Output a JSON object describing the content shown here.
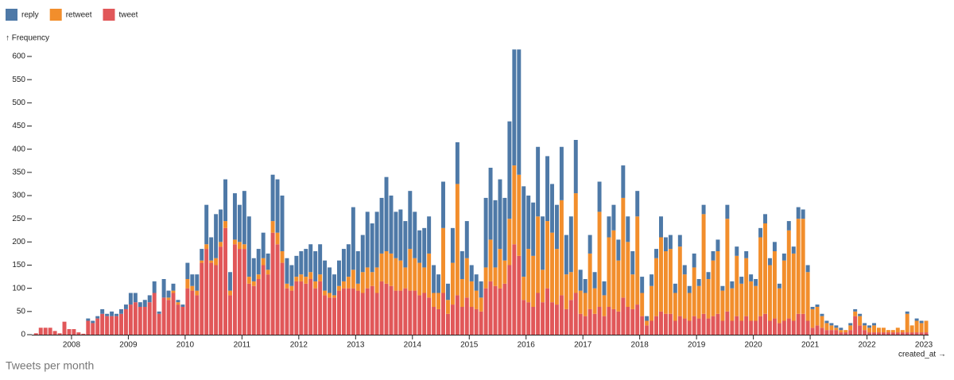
{
  "chart_data": {
    "type": "stacked-bar",
    "caption": "Tweets per month",
    "y_label": "↑ Frequency",
    "x_label": "created_at →",
    "x": [
      "2007-05",
      "2007-06",
      "2007-07",
      "2007-08",
      "2007-09",
      "2007-10",
      "2007-11",
      "2007-12",
      "2008-01",
      "2008-02",
      "2008-03",
      "2008-04",
      "2008-05",
      "2008-06",
      "2008-07",
      "2008-08",
      "2008-09",
      "2008-10",
      "2008-11",
      "2008-12",
      "2009-01",
      "2009-02",
      "2009-03",
      "2009-04",
      "2009-05",
      "2009-06",
      "2009-07",
      "2009-08",
      "2009-09",
      "2009-10",
      "2009-11",
      "2009-12",
      "2010-01",
      "2010-02",
      "2010-03",
      "2010-04",
      "2010-05",
      "2010-06",
      "2010-07",
      "2010-08",
      "2010-09",
      "2010-10",
      "2010-11",
      "2010-12",
      "2011-01",
      "2011-02",
      "2011-03",
      "2011-04",
      "2011-05",
      "2011-06",
      "2011-07",
      "2011-08",
      "2011-09",
      "2011-10",
      "2011-11",
      "2011-12",
      "2012-01",
      "2012-02",
      "2012-03",
      "2012-04",
      "2012-05",
      "2012-06",
      "2012-07",
      "2012-08",
      "2012-09",
      "2012-10",
      "2012-11",
      "2012-12",
      "2013-01",
      "2013-02",
      "2013-03",
      "2013-04",
      "2013-05",
      "2013-06",
      "2013-07",
      "2013-08",
      "2013-09",
      "2013-10",
      "2013-11",
      "2013-12",
      "2014-01",
      "2014-02",
      "2014-03",
      "2014-04",
      "2014-05",
      "2014-06",
      "2014-07",
      "2014-08",
      "2014-09",
      "2014-10",
      "2014-11",
      "2014-12",
      "2015-01",
      "2015-02",
      "2015-03",
      "2015-04",
      "2015-05",
      "2015-06",
      "2015-07",
      "2015-08",
      "2015-09",
      "2015-10",
      "2015-11",
      "2015-12",
      "2016-01",
      "2016-02",
      "2016-03",
      "2016-04",
      "2016-05",
      "2016-06",
      "2016-07",
      "2016-08",
      "2016-09",
      "2016-10",
      "2016-11",
      "2016-12",
      "2017-01",
      "2017-02",
      "2017-03",
      "2017-04",
      "2017-05",
      "2017-06",
      "2017-07",
      "2017-08",
      "2017-09",
      "2017-10",
      "2017-11",
      "2017-12",
      "2018-01",
      "2018-02",
      "2018-03",
      "2018-04",
      "2018-05",
      "2018-06",
      "2018-07",
      "2018-08",
      "2018-09",
      "2018-10",
      "2018-11",
      "2018-12",
      "2019-01",
      "2019-02",
      "2019-03",
      "2019-04",
      "2019-05",
      "2019-06",
      "2019-07",
      "2019-08",
      "2019-09",
      "2019-10",
      "2019-11",
      "2019-12",
      "2020-01",
      "2020-02",
      "2020-03",
      "2020-04",
      "2020-05",
      "2020-06",
      "2020-07",
      "2020-08",
      "2020-09",
      "2020-10",
      "2020-11",
      "2020-12",
      "2021-01",
      "2021-02",
      "2021-03",
      "2021-04",
      "2021-05",
      "2021-06",
      "2021-07",
      "2021-08",
      "2021-09",
      "2021-10",
      "2021-11",
      "2021-12",
      "2022-01",
      "2022-02",
      "2022-03",
      "2022-04",
      "2022-05",
      "2022-06",
      "2022-07",
      "2022-08",
      "2022-09",
      "2022-10",
      "2022-11",
      "2022-12",
      "2023-01"
    ],
    "series": [
      {
        "name": "reply",
        "color": "#4e79a7",
        "values": [
          0,
          0,
          0,
          0,
          0,
          0,
          0,
          0,
          0,
          0,
          0,
          5,
          5,
          5,
          10,
          5,
          10,
          5,
          10,
          10,
          25,
          20,
          10,
          15,
          15,
          25,
          5,
          40,
          15,
          15,
          5,
          5,
          35,
          25,
          35,
          25,
          85,
          50,
          95,
          70,
          90,
          40,
          100,
          80,
          115,
          130,
          50,
          55,
          55,
          35,
          100,
          115,
          120,
          55,
          45,
          45,
          50,
          60,
          60,
          65,
          65,
          65,
          55,
          45,
          55,
          70,
          70,
          135,
          70,
          80,
          120,
          105,
          120,
          120,
          160,
          125,
          100,
          110,
          100,
          125,
          100,
          70,
          85,
          80,
          60,
          40,
          100,
          35,
          75,
          90,
          60,
          80,
          35,
          35,
          35,
          150,
          155,
          145,
          150,
          135,
          210,
          250,
          270,
          195,
          115,
          115,
          150,
          115,
          140,
          105,
          95,
          115,
          85,
          120,
          115,
          45,
          30,
          40,
          35,
          65,
          30,
          45,
          55,
          45,
          70,
          55,
          50,
          55,
          35,
          10,
          25,
          20,
          45,
          30,
          30,
          20,
          25,
          20,
          15,
          30,
          15,
          20,
          15,
          20,
          25,
          10,
          30,
          15,
          20,
          15,
          15,
          15,
          15,
          20,
          20,
          15,
          20,
          10,
          15,
          20,
          15,
          25,
          20,
          15,
          5,
          5,
          5,
          5,
          5,
          5,
          5,
          0,
          5,
          5,
          5,
          5,
          5,
          5,
          0,
          0,
          0,
          0,
          0,
          0,
          5,
          0,
          5,
          5,
          0
        ]
      },
      {
        "name": "retweet",
        "color": "#f28e2c",
        "values": [
          0,
          0,
          0,
          0,
          0,
          0,
          0,
          0,
          0,
          0,
          0,
          0,
          0,
          0,
          0,
          0,
          0,
          0,
          0,
          0,
          0,
          0,
          0,
          0,
          0,
          0,
          0,
          0,
          5,
          5,
          5,
          0,
          20,
          10,
          10,
          5,
          10,
          5,
          15,
          10,
          15,
          10,
          10,
          15,
          10,
          15,
          10,
          10,
          15,
          10,
          25,
          25,
          25,
          10,
          10,
          10,
          15,
          15,
          15,
          15,
          15,
          10,
          10,
          5,
          10,
          15,
          25,
          40,
          15,
          45,
          45,
          30,
          55,
          60,
          70,
          70,
          70,
          65,
          45,
          90,
          70,
          70,
          55,
          95,
          30,
          35,
          140,
          30,
          90,
          240,
          60,
          85,
          55,
          40,
          30,
          45,
          90,
          40,
          85,
          50,
          100,
          170,
          175,
          50,
          115,
          110,
          165,
          70,
          145,
          150,
          120,
          205,
          75,
          60,
          215,
          50,
          50,
          120,
          55,
          205,
          45,
          150,
          170,
          110,
          215,
          140,
          75,
          190,
          50,
          10,
          75,
          125,
          160,
          135,
          140,
          60,
          150,
          95,
          60,
          105,
          70,
          215,
          85,
          120,
          135,
          65,
          200,
          70,
          130,
          80,
          125,
          85,
          75,
          170,
          195,
          120,
          145,
          75,
          130,
          190,
          145,
          205,
          205,
          105,
          40,
          40,
          25,
          15,
          10,
          5,
          5,
          5,
          10,
          10,
          20,
          10,
          10,
          15,
          10,
          10,
          5,
          5,
          10,
          5,
          40,
          15,
          25,
          20,
          25
        ]
      },
      {
        "name": "tweet",
        "color": "#e15759",
        "values": [
          3,
          15,
          15,
          15,
          8,
          3,
          28,
          12,
          12,
          5,
          2,
          30,
          25,
          35,
          45,
          40,
          40,
          40,
          45,
          55,
          65,
          70,
          60,
          60,
          70,
          90,
          45,
          80,
          75,
          90,
          65,
          60,
          100,
          95,
          85,
          155,
          185,
          155,
          150,
          190,
          230,
          85,
          195,
          185,
          185,
          110,
          105,
          120,
          150,
          130,
          220,
          195,
          155,
          100,
          95,
          115,
          115,
          110,
          120,
          100,
          115,
          85,
          80,
          80,
          95,
          100,
          100,
          100,
          95,
          90,
          100,
          105,
          90,
          115,
          110,
          105,
          95,
          95,
          100,
          95,
          95,
          85,
          90,
          80,
          60,
          55,
          90,
          45,
          65,
          85,
          60,
          80,
          60,
          55,
          50,
          100,
          115,
          105,
          100,
          110,
          150,
          195,
          170,
          75,
          70,
          60,
          90,
          70,
          100,
          70,
          65,
          85,
          55,
          75,
          90,
          45,
          40,
          55,
          45,
          60,
          40,
          60,
          55,
          50,
          80,
          60,
          55,
          65,
          40,
          20,
          30,
          40,
          50,
          45,
          45,
          30,
          40,
          35,
          30,
          40,
          35,
          45,
          35,
          40,
          45,
          30,
          50,
          30,
          40,
          30,
          40,
          30,
          30,
          40,
          45,
          30,
          35,
          25,
          30,
          35,
          30,
          45,
          45,
          30,
          15,
          20,
          15,
          10,
          10,
          10,
          5,
          5,
          10,
          40,
          20,
          10,
          5,
          5,
          5,
          5,
          5,
          5,
          5,
          5,
          5,
          5,
          5,
          5,
          5
        ]
      }
    ],
    "xlim": [
      "2007-05",
      "2023-02"
    ],
    "xticks": [
      2008,
      2009,
      2010,
      2011,
      2012,
      2013,
      2014,
      2015,
      2016,
      2017,
      2018,
      2019,
      2020,
      2021,
      2022,
      2023
    ],
    "ylim": [
      0,
      615
    ],
    "yticks": [
      0,
      50,
      100,
      150,
      200,
      250,
      300,
      350,
      400,
      450,
      500,
      550,
      600
    ],
    "legend": "top-left"
  }
}
